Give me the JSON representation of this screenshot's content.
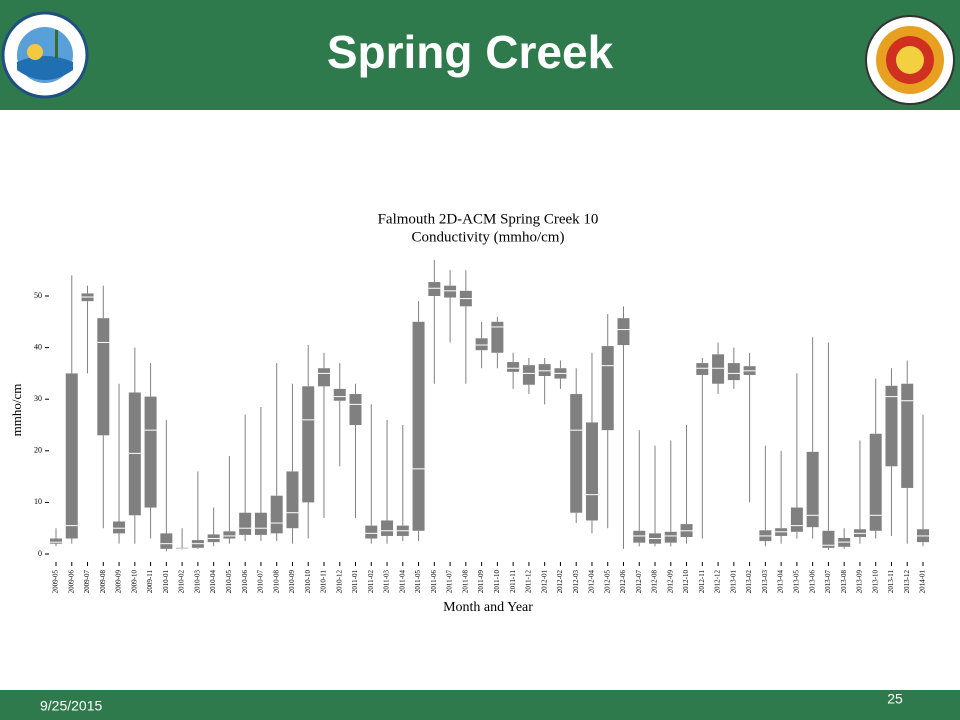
{
  "slide": {
    "title": "Spring Creek",
    "date": "9/25/2015",
    "page_number": "25"
  },
  "chart_data": {
    "type": "box",
    "title": "Falmouth 2D-ACM Spring Creek 10",
    "subtitle": "Conductivity (mmho/cm)",
    "x_label": "Month and Year",
    "y_label": "mmho/cm",
    "color": "#808080",
    "ylim": [
      -2,
      57
    ],
    "yticks": [
      0,
      10,
      20,
      30,
      40,
      50
    ],
    "categories": [
      "2009-05",
      "2009-06",
      "2009-07",
      "2009-08",
      "2009-09",
      "2009-10",
      "2009-11",
      "2010-01",
      "2010-02",
      "2010-03",
      "2010-04",
      "2010-05",
      "2010-06",
      "2010-07",
      "2010-08",
      "2010-09",
      "2010-10",
      "2010-11",
      "2010-12",
      "2011-01",
      "2011-02",
      "2011-03",
      "2011-04",
      "2011-05",
      "2011-06",
      "2011-07",
      "2011-08",
      "2011-09",
      "2011-10",
      "2011-11",
      "2011-12",
      "2012-01",
      "2012-02",
      "2012-03",
      "2012-04",
      "2012-05",
      "2012-06",
      "2012-07",
      "2012-08",
      "2012-09",
      "2012-10",
      "2012-11",
      "2012-12",
      "2013-01",
      "2013-02",
      "2013-03",
      "2013-04",
      "2013-05",
      "2013-06",
      "2013-07",
      "2013-08",
      "2013-09",
      "2013-10",
      "2013-11",
      "2013-12",
      "2014-01"
    ],
    "min": [
      1.5,
      2,
      35,
      5,
      2,
      2,
      3,
      0.5,
      0.8,
      1,
      1.5,
      2,
      2.5,
      2.5,
      2.5,
      2,
      3,
      7,
      17,
      7,
      2,
      2,
      2.5,
      2.5,
      33,
      41,
      33,
      36,
      36,
      32,
      31,
      29,
      32,
      6,
      4,
      5,
      1,
      1.5,
      1.5,
      1.5,
      2,
      3,
      31,
      32,
      10,
      1.5,
      2,
      3,
      3,
      0.8,
      1,
      2,
      3,
      3.5,
      2,
      1.5
    ],
    "q1": [
      2,
      3,
      49,
      23,
      4,
      7.5,
      9,
      1,
      1,
      1.2,
      2.3,
      3,
      3.7,
      3.7,
      4,
      5,
      10,
      32.5,
      29.7,
      25,
      3,
      3.5,
      3.5,
      4.5,
      50,
      49.7,
      48,
      39.5,
      39,
      35.3,
      32.8,
      34.5,
      34,
      8,
      6.5,
      24,
      40.5,
      2.2,
      2,
      2.2,
      3.3,
      34.7,
      33,
      33.7,
      34.7,
      2.5,
      3.5,
      4.3,
      5.2,
      1.2,
      1.4,
      3.3,
      4.5,
      17,
      12.8,
      2.3
    ],
    "median": [
      2.3,
      5.5,
      49.8,
      41,
      5,
      19.5,
      24,
      2,
      1,
      2,
      3,
      3.5,
      5,
      5,
      6,
      8,
      26,
      35,
      30.5,
      29,
      4,
      4.5,
      4.5,
      16.5,
      51.5,
      51,
      49.5,
      40.5,
      44,
      36,
      35,
      35.5,
      35,
      24,
      11.5,
      36.5,
      43.5,
      3.5,
      3,
      3.5,
      4.5,
      36,
      36,
      35,
      35.5,
      3.5,
      4.3,
      5.5,
      7.5,
      1.7,
      2.3,
      4,
      7.5,
      30.5,
      29.7,
      3.5
    ],
    "q3": [
      3,
      35,
      50.5,
      45.7,
      6.3,
      31.3,
      30.5,
      4,
      1.2,
      2.7,
      3.8,
      4.4,
      8,
      8,
      11.3,
      16,
      32.5,
      36,
      32,
      31,
      5.5,
      6.5,
      5.5,
      45,
      52.7,
      52,
      51,
      41.8,
      45,
      37.2,
      36.6,
      36.8,
      36,
      31,
      25.5,
      40.3,
      45.7,
      4.5,
      4,
      4.3,
      5.8,
      37,
      38.7,
      37,
      36.4,
      4.6,
      5,
      9,
      19.8,
      4.5,
      3.1,
      4.8,
      23.3,
      32.6,
      33,
      4.8
    ],
    "max": [
      5,
      54,
      52,
      52,
      33,
      40,
      37,
      26,
      5,
      16,
      9,
      19,
      27,
      28.5,
      37,
      33,
      40.5,
      39,
      37,
      33,
      29,
      26,
      25,
      49,
      57,
      55,
      55,
      45,
      46,
      39,
      38,
      38,
      37.5,
      36,
      39,
      46.5,
      48,
      24,
      21,
      22,
      25,
      38,
      41,
      40,
      39,
      21,
      20,
      35,
      42,
      41,
      5,
      22,
      34,
      36,
      37.5,
      27
    ]
  }
}
